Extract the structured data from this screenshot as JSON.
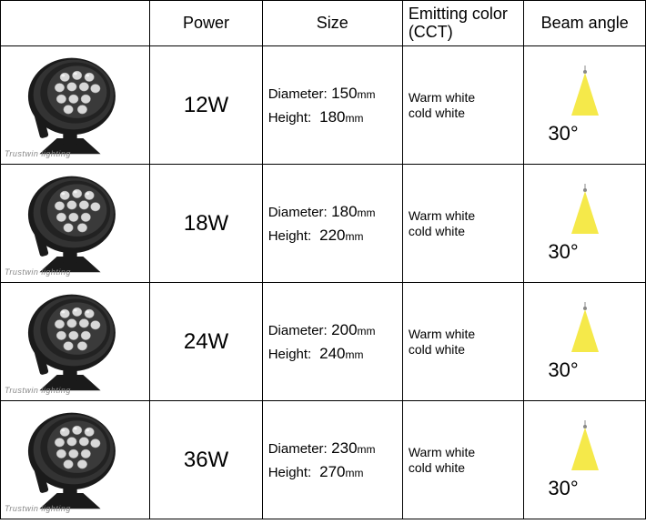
{
  "headers": {
    "image": "",
    "power": "Power",
    "size": "Size",
    "cct": "Emitting color (CCT)",
    "beam": "Beam angle"
  },
  "watermark": "Trustwin lighting",
  "size_labels": {
    "diameter": "Diameter:",
    "height": "Height:",
    "unit": "mm"
  },
  "cct": {
    "warm": "Warm white",
    "cold": "cold white"
  },
  "beam_cone": {
    "fill": "#f5e94a",
    "stroke": "#bfbfbf"
  },
  "product_colors": {
    "body": "#2a2a2a",
    "body_light": "#5a5a5a",
    "led": "#c9c9c9",
    "led_highlight": "#f0f0f0"
  },
  "rows": [
    {
      "power": "12W",
      "diameter": "150",
      "height": "180",
      "beam": "30°"
    },
    {
      "power": "18W",
      "diameter": "180",
      "height": "220",
      "beam": "30°"
    },
    {
      "power": "24W",
      "diameter": "200",
      "height": "240",
      "beam": "30°"
    },
    {
      "power": "36W",
      "diameter": "230",
      "height": "270",
      "beam": "30°"
    }
  ]
}
